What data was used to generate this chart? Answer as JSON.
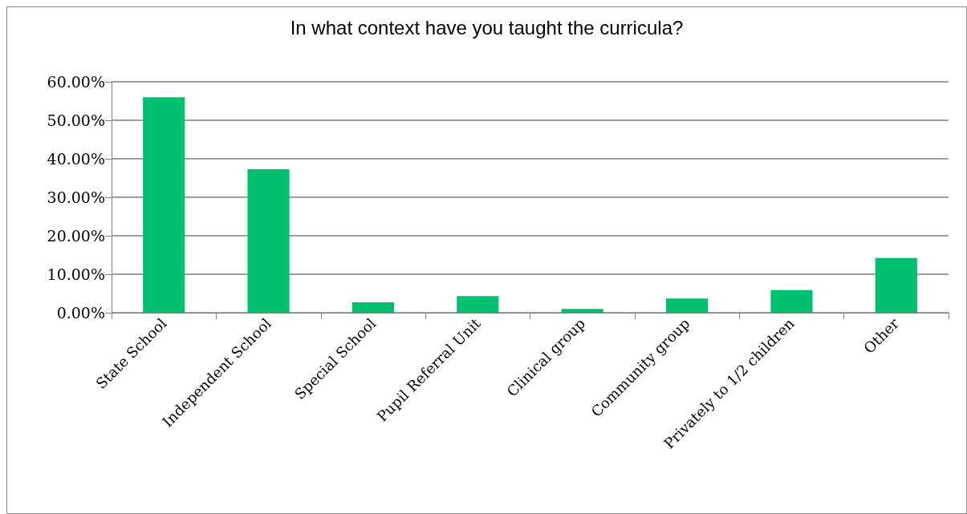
{
  "chart_data": {
    "type": "bar",
    "title": "In what context have you taught the curricula?",
    "categories": [
      "State School",
      "Independent School",
      "Special School",
      "Pupil Referral Unit",
      "Clinical group",
      "Community group",
      "Privately to 1/2 children",
      "Other"
    ],
    "values": [
      56.0,
      37.3,
      2.7,
      4.3,
      1.0,
      3.7,
      5.9,
      14.2
    ],
    "color": "#00bf6f",
    "ylim": [
      0,
      60
    ],
    "yticks": [
      {
        "value": 0,
        "label": "0.00%"
      },
      {
        "value": 10,
        "label": "10.00%"
      },
      {
        "value": 20,
        "label": "20.00%"
      },
      {
        "value": 30,
        "label": "30.00%"
      },
      {
        "value": 40,
        "label": "40.00%"
      },
      {
        "value": 50,
        "label": "50.00%"
      },
      {
        "value": 60,
        "label": "60.00%"
      }
    ],
    "grid": "y"
  }
}
